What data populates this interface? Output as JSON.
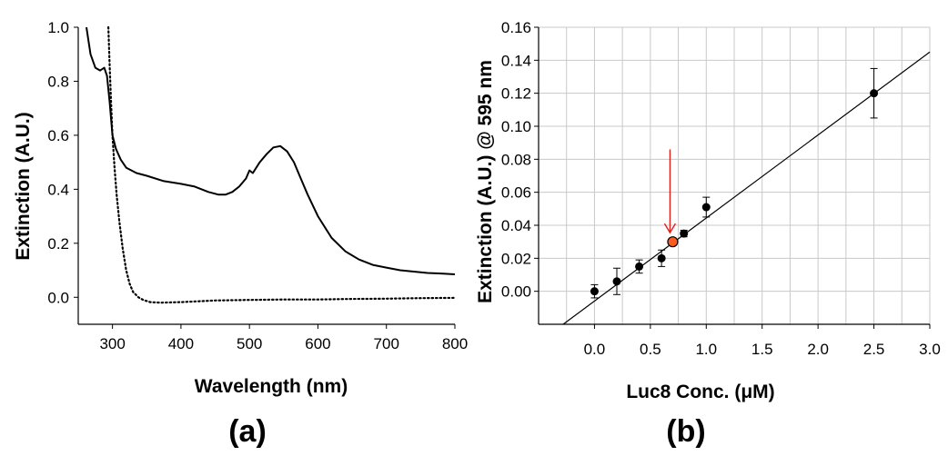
{
  "chart_data": [
    {
      "panel_label": "(a)",
      "type": "line",
      "xlabel": "Wavelength (nm)",
      "ylabel": "Extinction (A.U.)",
      "xlim": [
        250,
        800
      ],
      "ylim": [
        -0.1,
        1.0
      ],
      "x_ticks": [
        300,
        400,
        500,
        600,
        700,
        800
      ],
      "y_ticks": [
        0.0,
        0.2,
        0.4,
        0.6,
        0.8,
        1.0
      ],
      "y_tick_labels": [
        "0.0",
        "0.2",
        "0.4",
        "0.6",
        "0.8",
        "1.0"
      ],
      "grid": false,
      "series": [
        {
          "style": "solid",
          "color": "#000000",
          "x": [
            262,
            268,
            275,
            282,
            288,
            292,
            296,
            300,
            305,
            312,
            320,
            335,
            350,
            375,
            400,
            420,
            440,
            455,
            465,
            475,
            485,
            495,
            500,
            505,
            515,
            525,
            535,
            545,
            555,
            565,
            575,
            585,
            600,
            620,
            640,
            660,
            680,
            700,
            720,
            740,
            760,
            780,
            800
          ],
          "y": [
            1.0,
            0.9,
            0.85,
            0.84,
            0.85,
            0.82,
            0.72,
            0.6,
            0.55,
            0.51,
            0.48,
            0.46,
            0.45,
            0.43,
            0.42,
            0.41,
            0.39,
            0.38,
            0.38,
            0.39,
            0.41,
            0.44,
            0.47,
            0.46,
            0.5,
            0.53,
            0.555,
            0.56,
            0.54,
            0.5,
            0.44,
            0.38,
            0.3,
            0.22,
            0.17,
            0.14,
            0.12,
            0.11,
            0.1,
            0.095,
            0.09,
            0.088,
            0.085
          ]
        },
        {
          "style": "dotted",
          "color": "#000000",
          "x": [
            294,
            296,
            298,
            300,
            303,
            306,
            310,
            315,
            320,
            325,
            330,
            338,
            345,
            355,
            370,
            400,
            450,
            500,
            550,
            600,
            650,
            700,
            750,
            800
          ],
          "y": [
            1.0,
            0.85,
            0.72,
            0.6,
            0.48,
            0.38,
            0.28,
            0.18,
            0.1,
            0.05,
            0.02,
            0.0,
            -0.01,
            -0.018,
            -0.02,
            -0.018,
            -0.012,
            -0.01,
            -0.008,
            -0.008,
            -0.006,
            -0.005,
            -0.003,
            -0.002
          ]
        }
      ]
    },
    {
      "panel_label": "(b)",
      "type": "scatter",
      "xlabel": "Luc8 Conc. (μM)",
      "ylabel": "Extinction (A.U.) @ 595 nm",
      "xlim": [
        -0.5,
        3.0
      ],
      "ylim": [
        -0.02,
        0.16
      ],
      "x_ticks": [
        0.0,
        0.5,
        1.0,
        1.5,
        2.0,
        2.5,
        3.0
      ],
      "x_tick_labels": [
        "0.0",
        "0.5",
        "1.0",
        "1.5",
        "2.0",
        "2.5",
        "3.0"
      ],
      "y_ticks": [
        0.0,
        0.02,
        0.04,
        0.06,
        0.08,
        0.1,
        0.12,
        0.14,
        0.16
      ],
      "y_tick_labels": [
        "0.00",
        "0.02",
        "0.04",
        "0.06",
        "0.08",
        "0.10",
        "0.12",
        "0.14",
        "0.16"
      ],
      "grid": true,
      "points": [
        {
          "x": 0.0,
          "y": 0.0,
          "err": 0.004
        },
        {
          "x": 0.2,
          "y": 0.006,
          "err": 0.008
        },
        {
          "x": 0.4,
          "y": 0.015,
          "err": 0.004
        },
        {
          "x": 0.6,
          "y": 0.02,
          "err": 0.005
        },
        {
          "x": 0.8,
          "y": 0.035,
          "err": 0.002
        },
        {
          "x": 1.0,
          "y": 0.051,
          "err": 0.006
        },
        {
          "x": 2.5,
          "y": 0.12,
          "err": 0.015
        }
      ],
      "highlight_point": {
        "x": 0.7,
        "y": 0.03,
        "color": "#ff5a1f",
        "arrow_color": "#e0201a"
      },
      "fit_line": {
        "x": [
          -0.28,
          3.0
        ],
        "y": [
          -0.02,
          0.145
        ]
      }
    }
  ]
}
